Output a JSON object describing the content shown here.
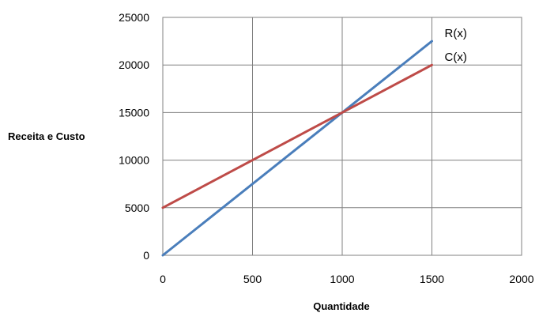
{
  "chart_data": {
    "type": "line",
    "title": "",
    "xlabel": "Quantidade",
    "ylabel": "Receita e Custo",
    "xlim": [
      0,
      2000
    ],
    "ylim": [
      0,
      25000
    ],
    "x_ticks": [
      0,
      500,
      1000,
      1500,
      2000
    ],
    "y_ticks": [
      0,
      5000,
      10000,
      15000,
      20000,
      25000
    ],
    "grid": true,
    "legend": "none (series labelled at line ends)",
    "series": [
      {
        "name": "R(x)",
        "color": "#4a7ebb",
        "x": [
          0,
          1500
        ],
        "y": [
          0,
          22500
        ]
      },
      {
        "name": "C(x)",
        "color": "#be4b48",
        "x": [
          0,
          1500
        ],
        "y": [
          5000,
          20000
        ]
      }
    ]
  }
}
